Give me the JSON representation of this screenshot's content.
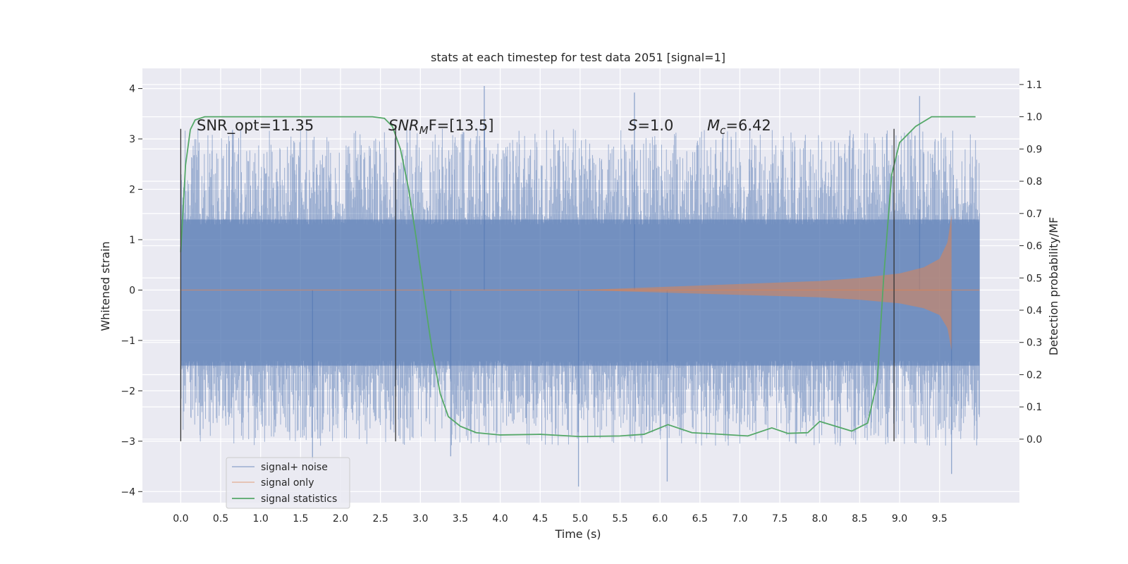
{
  "chart_data": {
    "type": "line",
    "title": "stats at each timestep for test data 2051 [signal=1]",
    "xlabel": "Time (s)",
    "ylabel": "Whitened strain",
    "y2label": "Detection probability/MF",
    "xlim": [
      -0.48,
      10.5
    ],
    "ylim": [
      -4.22,
      4.4
    ],
    "y2lim": [
      -0.197,
      1.15
    ],
    "x_ticks": [
      0.0,
      0.5,
      1.0,
      1.5,
      2.0,
      2.5,
      3.0,
      3.5,
      4.0,
      4.5,
      5.0,
      5.5,
      6.0,
      6.5,
      7.0,
      7.5,
      8.0,
      8.5,
      9.0,
      9.5
    ],
    "x_tick_labels": [
      "0.0",
      "0.5",
      "1.0",
      "1.5",
      "2.0",
      "2.5",
      "3.0",
      "3.5",
      "4.0",
      "4.5",
      "5.0",
      "5.5",
      "6.0",
      "6.5",
      "7.0",
      "7.5",
      "8.0",
      "8.5",
      "9.0",
      "9.5"
    ],
    "y_ticks": [
      -4,
      -3,
      -2,
      -1,
      0,
      1,
      2,
      3,
      4
    ],
    "y_tick_labels": [
      "−4",
      "−3",
      "−2",
      "−1",
      "0",
      "1",
      "2",
      "3",
      "4"
    ],
    "y2_ticks": [
      0.0,
      0.1,
      0.2,
      0.3,
      0.4,
      0.5,
      0.6,
      0.7,
      0.8,
      0.9,
      1.0,
      1.1
    ],
    "y2_tick_labels": [
      "0.0",
      "0.1",
      "0.2",
      "0.3",
      "0.4",
      "0.5",
      "0.6",
      "0.7",
      "0.8",
      "0.9",
      "1.0",
      "1.1"
    ],
    "grid": true,
    "legend_position": "lower-left",
    "annotations": {
      "snr_opt": "SNR_opt=11.35",
      "snr_mf_var": "SNR",
      "snr_mf_sub": "M",
      "snr_mf_rest": "F=[13.5]",
      "s_var": "S",
      "s_rest": "=1.0",
      "mc_var": "M",
      "mc_sub": "c",
      "mc_rest": "=6.42"
    },
    "vlines": [
      {
        "x": 0.0,
        "y_range": [
          -3.0,
          3.2
        ]
      },
      {
        "x": 2.69,
        "y_range": [
          -3.0,
          3.2
        ]
      },
      {
        "x": 8.93,
        "y_range": [
          -3.0,
          3.2
        ]
      }
    ],
    "series": [
      {
        "name": "signal+ noise",
        "color": "#4c72b0",
        "style": "noise",
        "x_range": [
          0.0,
          10.0
        ],
        "band": [
          -1.5,
          1.4
        ],
        "extreme_spikes": [
          {
            "x": 3.8,
            "y": 4.05
          },
          {
            "x": 5.68,
            "y": 3.92
          },
          {
            "x": 9.25,
            "y": 3.85
          },
          {
            "x": 4.98,
            "y": -3.9
          },
          {
            "x": 6.09,
            "y": -3.8
          },
          {
            "x": 9.65,
            "y": -3.65
          },
          {
            "x": 1.65,
            "y": -3.4
          },
          {
            "x": 3.38,
            "y": -3.3
          }
        ]
      },
      {
        "name": "signal only",
        "color": "#dd8452",
        "style": "chirp",
        "x_range": [
          5.0,
          9.65
        ],
        "envelope": [
          [
            5.0,
            0.0
          ],
          [
            6.0,
            0.06
          ],
          [
            7.0,
            0.12
          ],
          [
            8.0,
            0.18
          ],
          [
            8.5,
            0.24
          ],
          [
            9.0,
            0.33
          ],
          [
            9.3,
            0.45
          ],
          [
            9.5,
            0.62
          ],
          [
            9.6,
            0.95
          ],
          [
            9.65,
            1.5
          ]
        ]
      },
      {
        "name": "signal statistics",
        "color": "#55a868",
        "axis": "y2",
        "points": [
          [
            0.0,
            0.58
          ],
          [
            0.06,
            0.85
          ],
          [
            0.12,
            0.96
          ],
          [
            0.18,
            0.99
          ],
          [
            0.3,
            1.0
          ],
          [
            1.0,
            1.0
          ],
          [
            2.0,
            1.0
          ],
          [
            2.4,
            1.0
          ],
          [
            2.55,
            0.995
          ],
          [
            2.65,
            0.97
          ],
          [
            2.75,
            0.9
          ],
          [
            2.85,
            0.78
          ],
          [
            2.95,
            0.62
          ],
          [
            3.05,
            0.44
          ],
          [
            3.15,
            0.27
          ],
          [
            3.25,
            0.14
          ],
          [
            3.35,
            0.07
          ],
          [
            3.5,
            0.04
          ],
          [
            3.7,
            0.02
          ],
          [
            4.0,
            0.013
          ],
          [
            4.5,
            0.015
          ],
          [
            5.0,
            0.008
          ],
          [
            5.5,
            0.01
          ],
          [
            5.8,
            0.015
          ],
          [
            6.1,
            0.045
          ],
          [
            6.4,
            0.02
          ],
          [
            6.7,
            0.016
          ],
          [
            7.1,
            0.01
          ],
          [
            7.4,
            0.035
          ],
          [
            7.6,
            0.018
          ],
          [
            7.85,
            0.02
          ],
          [
            8.0,
            0.055
          ],
          [
            8.2,
            0.04
          ],
          [
            8.4,
            0.025
          ],
          [
            8.6,
            0.05
          ],
          [
            8.72,
            0.18
          ],
          [
            8.8,
            0.5
          ],
          [
            8.9,
            0.82
          ],
          [
            9.0,
            0.92
          ],
          [
            9.2,
            0.97
          ],
          [
            9.4,
            1.0
          ],
          [
            9.95,
            1.0
          ]
        ]
      }
    ]
  }
}
